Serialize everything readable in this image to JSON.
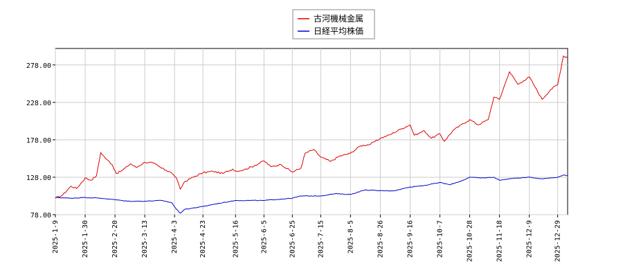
{
  "chart_data": {
    "type": "line",
    "title": "",
    "xlabel": "",
    "ylabel": "",
    "ylim": [
      78,
      300
    ],
    "yticks": [
      78,
      128,
      178,
      228,
      278
    ],
    "ytick_labels": [
      "78.00",
      "128.00",
      "178.00",
      "228.00",
      "278.00"
    ],
    "xlim": [
      "2025-01-09",
      "2026-01-05"
    ],
    "xticks": [
      "2025-01-09",
      "2025-01-30",
      "2025-02-20",
      "2025-03-13",
      "2025-04-03",
      "2025-04-23",
      "2025-05-16",
      "2025-06-05",
      "2025-06-25",
      "2025-07-15",
      "2025-08-05",
      "2025-08-26",
      "2025-09-16",
      "2025-10-07",
      "2025-10-28",
      "2025-11-18",
      "2025-12-09",
      "2025-12-29"
    ],
    "xtick_labels": [
      "2025-1-9",
      "2025-1-30",
      "2025-2-20",
      "2025-3-13",
      "2025-4-3",
      "2025-4-23",
      "2025-5-16",
      "2025-6-5",
      "2025-6-25",
      "2025-7-15",
      "2025-8-5",
      "2025-8-26",
      "2025-9-16",
      "2025-10-7",
      "2025-10-28",
      "2025-11-18",
      "2025-12-9",
      "2025-12-29"
    ],
    "grid": true,
    "legend_position": "top-center",
    "series": [
      {
        "name": "古河機械金属",
        "color": "#dd0000",
        "points": [
          [
            "2025-01-09",
            100
          ],
          [
            "2025-01-14",
            104
          ],
          [
            "2025-01-20",
            116
          ],
          [
            "2025-01-24",
            113
          ],
          [
            "2025-01-30",
            127
          ],
          [
            "2025-02-03",
            124
          ],
          [
            "2025-02-07",
            130
          ],
          [
            "2025-02-10",
            161
          ],
          [
            "2025-02-14",
            152
          ],
          [
            "2025-02-18",
            145
          ],
          [
            "2025-02-21",
            133
          ],
          [
            "2025-02-25",
            137
          ],
          [
            "2025-03-03",
            146
          ],
          [
            "2025-03-07",
            141
          ],
          [
            "2025-03-13",
            148
          ],
          [
            "2025-03-19",
            147
          ],
          [
            "2025-03-25",
            140
          ],
          [
            "2025-03-31",
            135
          ],
          [
            "2025-04-04",
            128
          ],
          [
            "2025-04-07",
            112
          ],
          [
            "2025-04-10",
            122
          ],
          [
            "2025-04-16",
            128
          ],
          [
            "2025-04-23",
            134
          ],
          [
            "2025-04-30",
            136
          ],
          [
            "2025-05-07",
            133
          ],
          [
            "2025-05-14",
            139
          ],
          [
            "2025-05-16",
            136
          ],
          [
            "2025-05-22",
            138
          ],
          [
            "2025-05-30",
            144
          ],
          [
            "2025-06-05",
            150
          ],
          [
            "2025-06-10",
            142
          ],
          [
            "2025-06-17",
            145
          ],
          [
            "2025-06-25",
            135
          ],
          [
            "2025-07-01",
            140
          ],
          [
            "2025-07-04",
            160
          ],
          [
            "2025-07-10",
            165
          ],
          [
            "2025-07-15",
            155
          ],
          [
            "2025-07-22",
            149
          ],
          [
            "2025-07-28",
            156
          ],
          [
            "2025-08-05",
            160
          ],
          [
            "2025-08-12",
            170
          ],
          [
            "2025-08-19",
            172
          ],
          [
            "2025-08-26",
            180
          ],
          [
            "2025-09-02",
            185
          ],
          [
            "2025-09-09",
            192
          ],
          [
            "2025-09-16",
            198
          ],
          [
            "2025-09-19",
            184
          ],
          [
            "2025-09-26",
            190
          ],
          [
            "2025-10-01",
            180
          ],
          [
            "2025-10-07",
            186
          ],
          [
            "2025-10-10",
            176
          ],
          [
            "2025-10-16",
            190
          ],
          [
            "2025-10-22",
            198
          ],
          [
            "2025-10-28",
            205
          ],
          [
            "2025-11-03",
            198
          ],
          [
            "2025-11-10",
            205
          ],
          [
            "2025-11-14",
            235
          ],
          [
            "2025-11-18",
            232
          ],
          [
            "2025-11-21",
            248
          ],
          [
            "2025-11-25",
            269
          ],
          [
            "2025-12-01",
            252
          ],
          [
            "2025-12-05",
            257
          ],
          [
            "2025-12-09",
            262
          ],
          [
            "2025-12-12",
            252
          ],
          [
            "2025-12-18",
            232
          ],
          [
            "2025-12-24",
            245
          ],
          [
            "2025-12-29",
            252
          ],
          [
            "2026-01-02",
            290
          ],
          [
            "2026-01-05",
            288
          ]
        ]
      },
      {
        "name": "日経平均株価",
        "color": "#0000cc",
        "points": [
          [
            "2025-01-09",
            101
          ],
          [
            "2025-01-20",
            100
          ],
          [
            "2025-01-30",
            101
          ],
          [
            "2025-02-10",
            100
          ],
          [
            "2025-02-20",
            98
          ],
          [
            "2025-03-01",
            96
          ],
          [
            "2025-03-13",
            96
          ],
          [
            "2025-03-25",
            97
          ],
          [
            "2025-04-01",
            94
          ],
          [
            "2025-04-04",
            86
          ],
          [
            "2025-04-07",
            80
          ],
          [
            "2025-04-10",
            85
          ],
          [
            "2025-04-23",
            89
          ],
          [
            "2025-05-01",
            92
          ],
          [
            "2025-05-16",
            97
          ],
          [
            "2025-06-05",
            97
          ],
          [
            "2025-06-25",
            100
          ],
          [
            "2025-07-01",
            103
          ],
          [
            "2025-07-15",
            103
          ],
          [
            "2025-07-25",
            106
          ],
          [
            "2025-08-05",
            105
          ],
          [
            "2025-08-15",
            111
          ],
          [
            "2025-08-26",
            110
          ],
          [
            "2025-09-05",
            110
          ],
          [
            "2025-09-16",
            115
          ],
          [
            "2025-09-26",
            117
          ],
          [
            "2025-10-07",
            121
          ],
          [
            "2025-10-14",
            118
          ],
          [
            "2025-10-22",
            123
          ],
          [
            "2025-10-28",
            128
          ],
          [
            "2025-11-05",
            127
          ],
          [
            "2025-11-14",
            128
          ],
          [
            "2025-11-18",
            124
          ],
          [
            "2025-11-25",
            126
          ],
          [
            "2025-12-01",
            127
          ],
          [
            "2025-12-09",
            128
          ],
          [
            "2025-12-18",
            126
          ],
          [
            "2025-12-29",
            128
          ],
          [
            "2026-01-02",
            131
          ],
          [
            "2026-01-05",
            130
          ]
        ]
      }
    ]
  }
}
